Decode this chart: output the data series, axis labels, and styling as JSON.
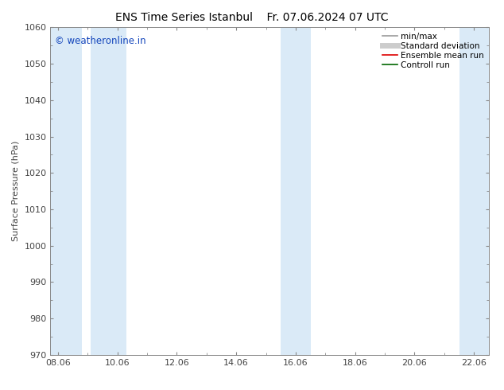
{
  "title_left": "ENS Time Series Istanbul",
  "title_right": "Fr. 07.06.2024 07 UTC",
  "ylabel": "Surface Pressure (hPa)",
  "ylim": [
    970,
    1060
  ],
  "yticks": [
    970,
    980,
    990,
    1000,
    1010,
    1020,
    1030,
    1040,
    1050,
    1060
  ],
  "xtick_labels": [
    "08.06",
    "10.06",
    "12.06",
    "14.06",
    "16.06",
    "18.06",
    "20.06",
    "22.06"
  ],
  "xtick_positions": [
    0,
    2,
    4,
    6,
    8,
    10,
    12,
    14
  ],
  "xmin": -0.25,
  "xmax": 14.5,
  "shaded_bands": [
    {
      "xmin": -0.25,
      "xmax": 0.8
    },
    {
      "xmin": 1.1,
      "xmax": 2.3
    },
    {
      "xmin": 7.5,
      "xmax": 8.5
    },
    {
      "xmin": 13.5,
      "xmax": 14.5
    }
  ],
  "band_color": "#daeaf7",
  "background_color": "#ffffff",
  "watermark": "© weatheronline.in",
  "watermark_color": "#1144bb",
  "legend_items": [
    {
      "label": "min/max",
      "color": "#999999",
      "linestyle": "-",
      "linewidth": 1.2
    },
    {
      "label": "Standard deviation",
      "color": "#cccccc",
      "linestyle": "-",
      "linewidth": 5
    },
    {
      "label": "Ensemble mean run",
      "color": "#dd0000",
      "linestyle": "-",
      "linewidth": 1.2
    },
    {
      "label": "Controll run",
      "color": "#006600",
      "linestyle": "-",
      "linewidth": 1.2
    }
  ],
  "spine_color": "#888888",
  "tick_color": "#444444",
  "title_fontsize": 10,
  "axis_label_fontsize": 8,
  "tick_fontsize": 8,
  "legend_fontsize": 7.5
}
